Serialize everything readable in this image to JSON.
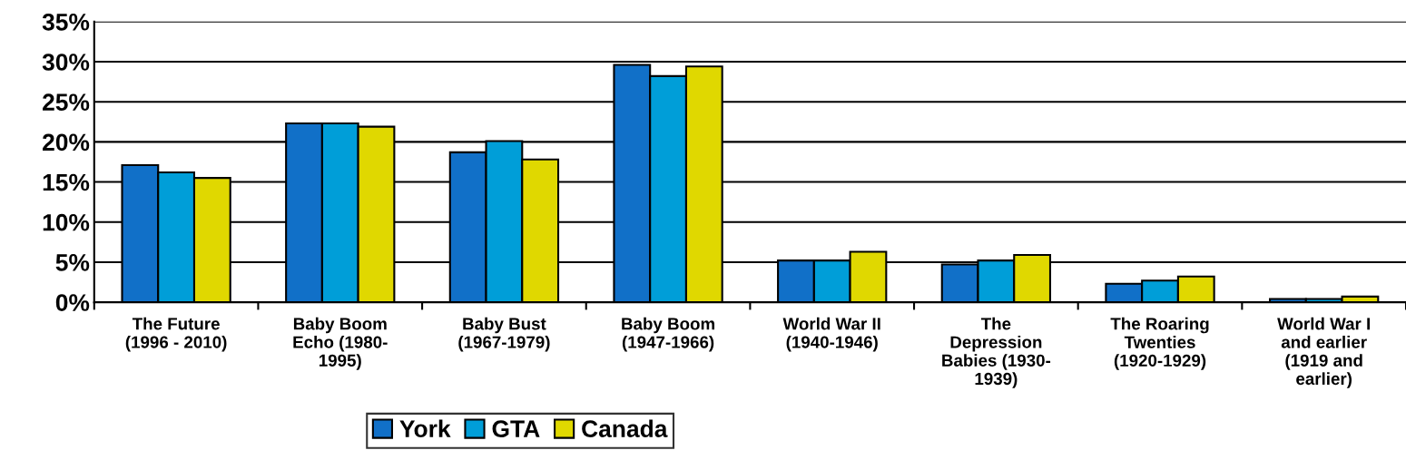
{
  "chart_data": {
    "type": "bar",
    "categories": [
      "The Future\n(1996 - 2010)",
      "Baby Boom\nEcho (1980-\n1995)",
      "Baby Bust\n(1967-1979)",
      "Baby Boom\n(1947-1966)",
      "World War II\n(1940-1946)",
      "The\nDepression\nBabies (1930-\n1939)",
      "The Roaring\nTwenties\n(1920-1929)",
      "World War I\nand earlier\n(1919 and\nearlier)"
    ],
    "series": [
      {
        "name": "York",
        "color": "#1170c8",
        "values": [
          17.1,
          22.3,
          18.7,
          29.6,
          5.2,
          4.7,
          2.3,
          0.4
        ]
      },
      {
        "name": "GTA",
        "color": "#009ed8",
        "values": [
          16.2,
          22.3,
          20.1,
          28.2,
          5.2,
          5.2,
          2.7,
          0.4
        ]
      },
      {
        "name": "Canada",
        "color": "#e0d800",
        "values": [
          15.5,
          21.9,
          17.8,
          29.4,
          6.3,
          5.9,
          3.2,
          0.7
        ]
      }
    ],
    "ylim": [
      0,
      35
    ],
    "yticks": [
      {
        "value": 0,
        "label": "0%"
      },
      {
        "value": 5,
        "label": "5%"
      },
      {
        "value": 10,
        "label": "10%"
      },
      {
        "value": 15,
        "label": "15%"
      },
      {
        "value": 20,
        "label": "20%"
      },
      {
        "value": 25,
        "label": "25%"
      },
      {
        "value": 30,
        "label": "30%"
      },
      {
        "value": 35,
        "label": "35%"
      }
    ],
    "grid": "y",
    "legend": "bottom"
  }
}
